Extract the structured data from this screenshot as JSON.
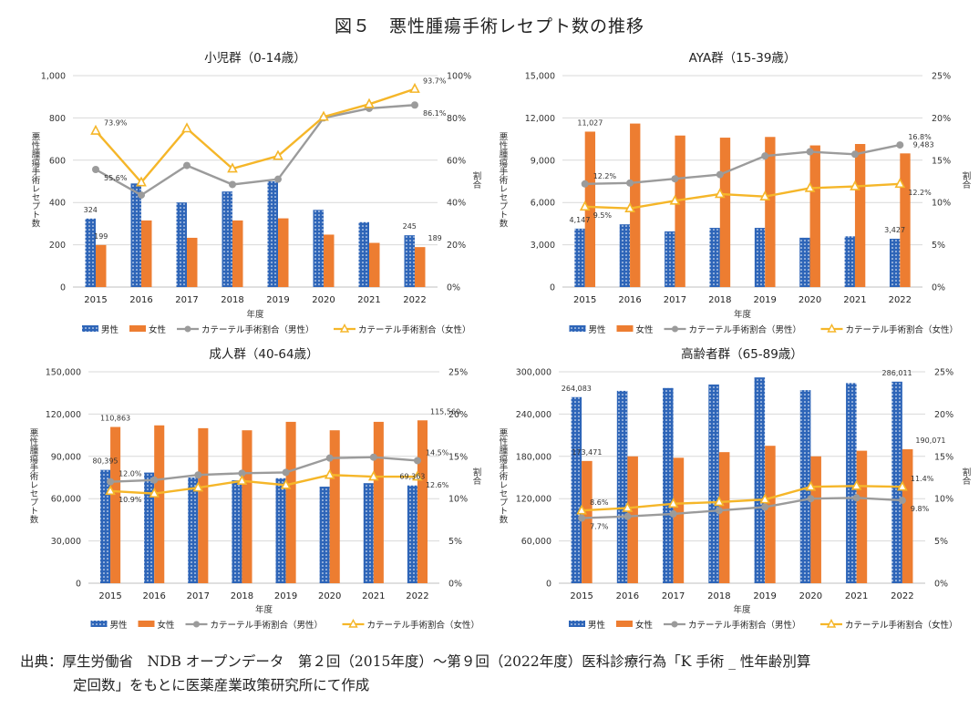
{
  "title": "図５　悪性腫瘍手術レセプト数の推移",
  "source": {
    "line1": "出典：厚生労働省　NDB オープンデータ　第２回（2015年度）～第９回（2022年度）医科診療行為「K 手術 _ 性年齢別算",
    "line2": "定回数」をもとに医薬産業政策研究所にて作成"
  },
  "colors": {
    "male": "#2e65b8",
    "female": "#ed7d31",
    "male_ratio": "#9b9b9b",
    "female_ratio": "#f5b629",
    "grid": "#d9d9d9",
    "axis": "#bfbfbf"
  },
  "chart_data": [
    {
      "type": "bar",
      "title": "小児群（0-14歳）",
      "xlabel": "年度",
      "ylabel": "悪性腫瘍手術レセプト数",
      "y2label": "割合",
      "categories": [
        "2015",
        "2016",
        "2017",
        "2018",
        "2019",
        "2020",
        "2021",
        "2022"
      ],
      "ylim": [
        0,
        1000
      ],
      "y_ticks": [
        "0",
        "200",
        "400",
        "600",
        "800",
        "1,000"
      ],
      "y2lim": [
        0,
        100
      ],
      "y2_ticks": [
        "0%",
        "20%",
        "40%",
        "60%",
        "80%",
        "100%"
      ],
      "series": [
        {
          "name": "男性",
          "kind": "bar",
          "values": [
            324,
            490,
            400,
            452,
            500,
            365,
            307,
            245
          ]
        },
        {
          "name": "女性",
          "kind": "bar",
          "values": [
            199,
            315,
            233,
            315,
            325,
            248,
            209,
            189
          ]
        },
        {
          "name": "カテーテル手術割合（男性）",
          "kind": "line",
          "axis": "right",
          "values": [
            55.6,
            43.5,
            57.5,
            48.5,
            51.0,
            80.0,
            84.5,
            86.1
          ]
        },
        {
          "name": "カテーテル手術割合（女性）",
          "kind": "line",
          "axis": "right",
          "values": [
            73.9,
            49.5,
            75.0,
            56.0,
            62.0,
            80.5,
            86.5,
            93.7
          ]
        }
      ],
      "data_labels": [
        {
          "series": 0,
          "index": 0,
          "text": "324"
        },
        {
          "series": 1,
          "index": 0,
          "text": "199"
        },
        {
          "series": 0,
          "index": 7,
          "text": "245"
        },
        {
          "series": 1,
          "index": 7,
          "text": "189"
        },
        {
          "series": 2,
          "index": 0,
          "text": "55.6%"
        },
        {
          "series": 3,
          "index": 0,
          "text": "73.9%"
        },
        {
          "series": 2,
          "index": 7,
          "text": "86.1%"
        },
        {
          "series": 3,
          "index": 7,
          "text": "93.7%"
        }
      ]
    },
    {
      "type": "bar",
      "title": "AYA群（15-39歳）",
      "xlabel": "年度",
      "ylabel": "悪性腫瘍手術レセプト数",
      "y2label": "割合",
      "categories": [
        "2015",
        "2016",
        "2017",
        "2018",
        "2019",
        "2020",
        "2021",
        "2022"
      ],
      "ylim": [
        0,
        15000
      ],
      "y_ticks": [
        "0",
        "3,000",
        "6,000",
        "9,000",
        "12,000",
        "15,000"
      ],
      "y2lim": [
        0,
        25
      ],
      "y2_ticks": [
        "0%",
        "5%",
        "10%",
        "15%",
        "20%",
        "25%"
      ],
      "series": [
        {
          "name": "男性",
          "kind": "bar",
          "values": [
            4147,
            4450,
            3950,
            4200,
            4200,
            3500,
            3600,
            3427
          ]
        },
        {
          "name": "女性",
          "kind": "bar",
          "values": [
            11027,
            11600,
            10750,
            10600,
            10650,
            10050,
            10150,
            9483
          ]
        },
        {
          "name": "カテーテル手術割合（男性）",
          "kind": "line",
          "axis": "right",
          "values": [
            12.2,
            12.3,
            12.8,
            13.3,
            15.5,
            16.0,
            15.7,
            16.8
          ]
        },
        {
          "name": "カテーテル手術割合（女性）",
          "kind": "line",
          "axis": "right",
          "values": [
            9.5,
            9.3,
            10.2,
            11.0,
            10.7,
            11.7,
            11.9,
            12.2
          ]
        }
      ],
      "data_labels": [
        {
          "series": 0,
          "index": 0,
          "text": "4,147"
        },
        {
          "series": 1,
          "index": 0,
          "text": "11,027"
        },
        {
          "series": 0,
          "index": 7,
          "text": "3,427"
        },
        {
          "series": 1,
          "index": 7,
          "text": "9,483"
        },
        {
          "series": 2,
          "index": 0,
          "text": "12.2%"
        },
        {
          "series": 3,
          "index": 0,
          "text": "9.5%"
        },
        {
          "series": 2,
          "index": 7,
          "text": "16.8%"
        },
        {
          "series": 3,
          "index": 7,
          "text": "12.2%"
        }
      ]
    },
    {
      "type": "bar",
      "title": "成人群（40-64歳）",
      "xlabel": "年度",
      "ylabel": "悪性腫瘍手術レセプト数",
      "y2label": "割合",
      "categories": [
        "2015",
        "2016",
        "2017",
        "2018",
        "2019",
        "2020",
        "2021",
        "2022"
      ],
      "ylim": [
        0,
        150000
      ],
      "y_ticks": [
        "0",
        "30,000",
        "60,000",
        "90,000",
        "120,000",
        "150,000"
      ],
      "y2lim": [
        0,
        25
      ],
      "y2_ticks": [
        "0%",
        "5%",
        "10%",
        "15%",
        "20%",
        "25%"
      ],
      "series": [
        {
          "name": "男性",
          "kind": "bar",
          "values": [
            80395,
            78500,
            75000,
            73000,
            74500,
            68500,
            71000,
            69363
          ]
        },
        {
          "name": "女性",
          "kind": "bar",
          "values": [
            110863,
            112000,
            110000,
            108500,
            114500,
            108500,
            114500,
            115560
          ]
        },
        {
          "name": "カテーテル手術割合（男性）",
          "kind": "line",
          "axis": "right",
          "values": [
            12.0,
            12.2,
            12.8,
            13.0,
            13.1,
            14.8,
            14.9,
            14.5
          ]
        },
        {
          "name": "カテーテル手術割合（女性）",
          "kind": "line",
          "axis": "right",
          "values": [
            10.9,
            10.6,
            11.3,
            12.1,
            11.6,
            12.8,
            12.6,
            12.6
          ]
        }
      ],
      "data_labels": [
        {
          "series": 0,
          "index": 0,
          "text": "80,395"
        },
        {
          "series": 1,
          "index": 0,
          "text": "110,863"
        },
        {
          "series": 0,
          "index": 7,
          "text": "69,363"
        },
        {
          "series": 1,
          "index": 7,
          "text": "115,560"
        },
        {
          "series": 2,
          "index": 0,
          "text": "12.0%"
        },
        {
          "series": 3,
          "index": 0,
          "text": "10.9%"
        },
        {
          "series": 2,
          "index": 7,
          "text": "14.5%"
        },
        {
          "series": 3,
          "index": 7,
          "text": "12.6%"
        }
      ]
    },
    {
      "type": "bar",
      "title": "高齢者群（65-89歳）",
      "xlabel": "年度",
      "ylabel": "悪性腫瘍手術レセプト数",
      "y2label": "割合",
      "categories": [
        "2015",
        "2016",
        "2017",
        "2018",
        "2019",
        "2020",
        "2021",
        "2022"
      ],
      "ylim": [
        0,
        300000
      ],
      "y_ticks": [
        "0",
        "60,000",
        "120,000",
        "180,000",
        "240,000",
        "300,000"
      ],
      "y2lim": [
        0,
        25
      ],
      "y2_ticks": [
        "0%",
        "5%",
        "10%",
        "15%",
        "20%",
        "25%"
      ],
      "series": [
        {
          "name": "男性",
          "kind": "bar",
          "values": [
            264083,
            273000,
            277000,
            282000,
            292000,
            274000,
            284000,
            286011
          ]
        },
        {
          "name": "女性",
          "kind": "bar",
          "values": [
            173471,
            180000,
            178000,
            186000,
            195000,
            180000,
            188000,
            190071
          ]
        },
        {
          "name": "カテーテル手術割合（男性）",
          "kind": "line",
          "axis": "right",
          "values": [
            7.7,
            7.9,
            8.2,
            8.6,
            9.0,
            10.0,
            10.1,
            9.8
          ]
        },
        {
          "name": "カテーテル手術割合（女性）",
          "kind": "line",
          "axis": "right",
          "values": [
            8.6,
            8.9,
            9.4,
            9.6,
            9.9,
            11.4,
            11.5,
            11.4
          ]
        }
      ],
      "data_labels": [
        {
          "series": 0,
          "index": 0,
          "text": "264,083"
        },
        {
          "series": 1,
          "index": 0,
          "text": "173,471"
        },
        {
          "series": 0,
          "index": 7,
          "text": "286,011"
        },
        {
          "series": 1,
          "index": 7,
          "text": "190,071"
        },
        {
          "series": 2,
          "index": 0,
          "text": "7.7%"
        },
        {
          "series": 3,
          "index": 0,
          "text": "8.6%"
        },
        {
          "series": 2,
          "index": 7,
          "text": "9.8%"
        },
        {
          "series": 3,
          "index": 7,
          "text": "11.4%"
        }
      ]
    }
  ]
}
